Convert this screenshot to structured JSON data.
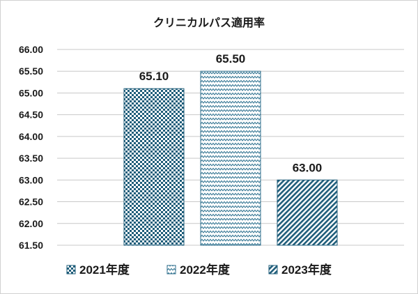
{
  "chart_data": {
    "type": "bar",
    "title": "クリニカルパス適用率",
    "categories": [
      "2021年度",
      "2022年度",
      "2023年度"
    ],
    "series": [
      {
        "name": "2021年度",
        "value": 65.1,
        "label": "65.10",
        "color": "#1f5d7a",
        "pattern": "checker"
      },
      {
        "name": "2022年度",
        "value": 65.5,
        "label": "65.50",
        "color": "#2f6f8c",
        "pattern": "zigzag"
      },
      {
        "name": "2023年度",
        "value": 63.0,
        "label": "63.00",
        "color": "#1f5d7a",
        "pattern": "diagonal"
      }
    ],
    "ylim": [
      61.5,
      66.0
    ],
    "yticks": [
      "61.50",
      "62.00",
      "62.50",
      "63.00",
      "63.50",
      "64.00",
      "64.50",
      "65.00",
      "65.50",
      "66.00"
    ],
    "grid": true,
    "legend": "bottom"
  }
}
